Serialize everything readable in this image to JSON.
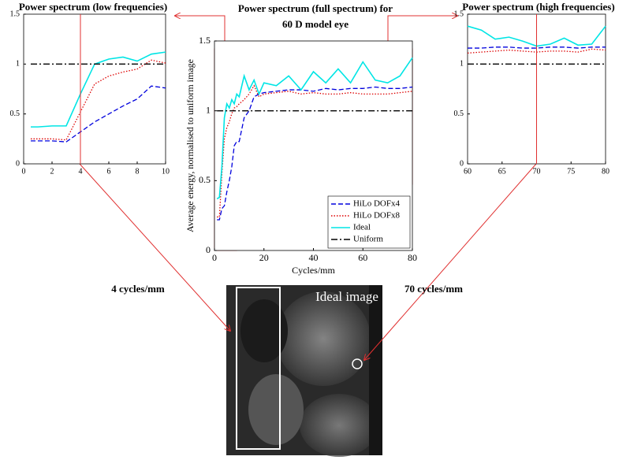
{
  "chart_data": [
    {
      "type": "line",
      "title": "Power spectrum (low frequencies)",
      "x": [
        0.5,
        1,
        2,
        3,
        4,
        5,
        6,
        7,
        8,
        9,
        10
      ],
      "xlim": [
        0,
        10
      ],
      "ylim": [
        0,
        1.5
      ],
      "xticks": [
        0,
        2,
        4,
        6,
        8,
        10
      ],
      "yticks": [
        0,
        0.5,
        1,
        1.5
      ],
      "vline": 4,
      "series": [
        {
          "color": "#0000dd",
          "style": "dashed",
          "values": [
            0.23,
            0.23,
            0.23,
            0.22,
            0.32,
            0.42,
            0.5,
            0.58,
            0.65,
            0.78,
            0.76
          ]
        },
        {
          "color": "#dd0000",
          "style": "dotted",
          "values": [
            0.25,
            0.25,
            0.25,
            0.24,
            0.52,
            0.8,
            0.88,
            0.92,
            0.95,
            1.04,
            1.01
          ]
        },
        {
          "color": "#00e5e5",
          "style": "solid",
          "values": [
            0.37,
            0.37,
            0.38,
            0.38,
            0.7,
            1.0,
            1.05,
            1.07,
            1.03,
            1.1,
            1.12
          ]
        },
        {
          "color": "#000000",
          "style": "dashdot",
          "values": [
            1,
            1,
            1,
            1,
            1,
            1,
            1,
            1,
            1,
            1,
            1
          ]
        }
      ]
    },
    {
      "type": "line",
      "title": [
        "Power spectrum (full spectrum) for",
        "60 D model eye"
      ],
      "xlabel": "Cycles/mm",
      "ylabel": "Average energy, normalised to uniform image",
      "x": [
        1,
        2,
        3,
        4,
        5,
        6,
        7,
        8,
        9,
        10,
        12,
        14,
        16,
        18,
        20,
        25,
        30,
        35,
        40,
        45,
        50,
        55,
        60,
        65,
        70,
        75,
        80
      ],
      "xlim": [
        0,
        80
      ],
      "ylim": [
        0,
        1.5
      ],
      "xticks": [
        0,
        20,
        40,
        60,
        80
      ],
      "yticks": [
        0,
        0.5,
        1,
        1.5
      ],
      "legend": "lower right",
      "series": [
        {
          "name": "HiLo DOFx4",
          "color": "#0000dd",
          "style": "dashed",
          "values": [
            0.22,
            0.22,
            0.3,
            0.32,
            0.42,
            0.5,
            0.6,
            0.75,
            0.78,
            0.78,
            0.95,
            1.0,
            1.1,
            1.12,
            1.13,
            1.14,
            1.15,
            1.15,
            1.14,
            1.16,
            1.15,
            1.16,
            1.16,
            1.17,
            1.16,
            1.16,
            1.17
          ]
        },
        {
          "name": "HiLo DOFx8",
          "color": "#dd0000",
          "style": "dotted",
          "values": [
            0.24,
            0.24,
            0.55,
            0.8,
            0.88,
            0.92,
            0.98,
            1.02,
            1.03,
            1.05,
            1.08,
            1.12,
            1.18,
            1.1,
            1.12,
            1.13,
            1.14,
            1.12,
            1.13,
            1.12,
            1.12,
            1.13,
            1.12,
            1.12,
            1.12,
            1.13,
            1.14
          ]
        },
        {
          "name": "Ideal",
          "color": "#00e5e5",
          "style": "solid",
          "values": [
            0.37,
            0.38,
            0.6,
            0.95,
            1.05,
            1.02,
            1.08,
            1.05,
            1.12,
            1.1,
            1.25,
            1.15,
            1.22,
            1.12,
            1.2,
            1.18,
            1.25,
            1.15,
            1.28,
            1.2,
            1.3,
            1.2,
            1.35,
            1.22,
            1.2,
            1.25,
            1.38
          ]
        },
        {
          "name": "Uniform",
          "color": "#000000",
          "style": "dashdot",
          "values": [
            1,
            1,
            1,
            1,
            1,
            1,
            1,
            1,
            1,
            1,
            1,
            1,
            1,
            1,
            1,
            1,
            1,
            1,
            1,
            1,
            1,
            1,
            1,
            1,
            1,
            1,
            1
          ]
        }
      ]
    },
    {
      "type": "line",
      "title": "Power spectrum (high frequencies)",
      "x": [
        60,
        62,
        64,
        66,
        68,
        70,
        72,
        74,
        76,
        78,
        80
      ],
      "xlim": [
        60,
        80
      ],
      "ylim": [
        0,
        1.5
      ],
      "xticks": [
        60,
        65,
        70,
        75,
        80
      ],
      "yticks": [
        0,
        0.5,
        1,
        1.5
      ],
      "vline": 70,
      "series": [
        {
          "color": "#0000dd",
          "style": "dashed",
          "values": [
            1.16,
            1.16,
            1.17,
            1.17,
            1.16,
            1.16,
            1.17,
            1.17,
            1.16,
            1.17,
            1.17
          ]
        },
        {
          "color": "#dd0000",
          "style": "dotted",
          "values": [
            1.11,
            1.12,
            1.13,
            1.14,
            1.13,
            1.12,
            1.13,
            1.13,
            1.12,
            1.15,
            1.14
          ]
        },
        {
          "color": "#00e5e5",
          "style": "solid",
          "values": [
            1.38,
            1.34,
            1.25,
            1.27,
            1.23,
            1.18,
            1.2,
            1.26,
            1.19,
            1.2,
            1.38
          ]
        },
        {
          "color": "#000000",
          "style": "dashdot",
          "values": [
            1,
            1,
            1,
            1,
            1,
            1,
            1,
            1,
            1,
            1,
            1
          ]
        }
      ]
    }
  ],
  "annotations": [
    "4 cycles/mm",
    "70 cycles/mm"
  ],
  "image_label": "Ideal image"
}
